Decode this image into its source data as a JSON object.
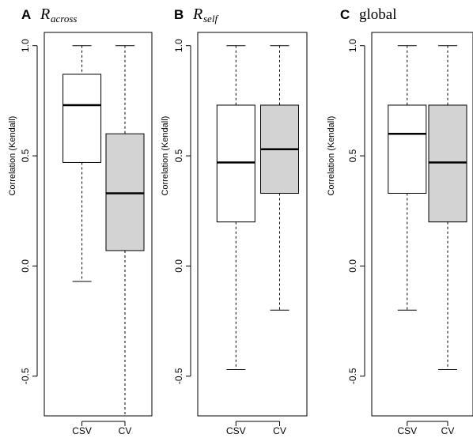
{
  "chart_data": [
    {
      "type": "box",
      "panel_letter": "A",
      "title_symbol": "R",
      "title_subscript": "across",
      "title_word": "",
      "ylabel": "Correlation (Kendall)",
      "ylim": [
        -0.68,
        1.06
      ],
      "yticks": [
        -0.5,
        0.0,
        0.5,
        1.0
      ],
      "ytick_labels": [
        "-0.5",
        "0.0",
        "0.5",
        "1.0"
      ],
      "categories": [
        "CSV",
        "CV"
      ],
      "boxes": [
        {
          "category": "CSV",
          "whisker_low": -0.07,
          "q1": 0.47,
          "median": 0.73,
          "q3": 0.87,
          "whisker_high": 1.0,
          "fill": "#ffffff"
        },
        {
          "category": "CV",
          "whisker_low": -0.68,
          "q1": 0.07,
          "median": 0.33,
          "q3": 0.6,
          "whisker_high": 1.0,
          "fill": "#d3d3d3"
        }
      ]
    },
    {
      "type": "box",
      "panel_letter": "B",
      "title_symbol": "R",
      "title_subscript": "self",
      "title_word": "",
      "ylabel": "Correlation (Kendall)",
      "ylim": [
        -0.68,
        1.06
      ],
      "yticks": [
        -0.5,
        0.0,
        0.5,
        1.0
      ],
      "ytick_labels": [
        "-0.5",
        "0.0",
        "0.5",
        "1.0"
      ],
      "categories": [
        "CSV",
        "CV"
      ],
      "boxes": [
        {
          "category": "CSV",
          "whisker_low": -0.47,
          "q1": 0.2,
          "median": 0.47,
          "q3": 0.73,
          "whisker_high": 1.0,
          "fill": "#ffffff"
        },
        {
          "category": "CV",
          "whisker_low": -0.2,
          "q1": 0.33,
          "median": 0.53,
          "q3": 0.73,
          "whisker_high": 1.0,
          "fill": "#d3d3d3"
        }
      ]
    },
    {
      "type": "box",
      "panel_letter": "C",
      "title_symbol": "",
      "title_subscript": "",
      "title_word": "global",
      "ylabel": "Correlation (Kendall)",
      "ylim": [
        -0.68,
        1.06
      ],
      "yticks": [
        -0.5,
        0.0,
        0.5,
        1.0
      ],
      "ytick_labels": [
        "-0.5",
        "0.0",
        "0.5",
        "1.0"
      ],
      "categories": [
        "CSV",
        "CV"
      ],
      "boxes": [
        {
          "category": "CSV",
          "whisker_low": -0.2,
          "q1": 0.33,
          "median": 0.6,
          "q3": 0.73,
          "whisker_high": 1.0,
          "fill": "#ffffff"
        },
        {
          "category": "CV",
          "whisker_low": -0.47,
          "q1": 0.2,
          "median": 0.47,
          "q3": 0.73,
          "whisker_high": 1.0,
          "fill": "#d3d3d3"
        }
      ]
    }
  ]
}
